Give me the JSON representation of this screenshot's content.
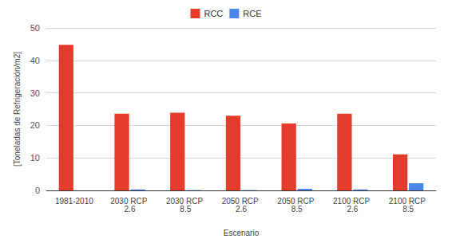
{
  "chart_data": {
    "type": "bar",
    "x_label": "Escenario",
    "y_label": "[Toneladas de Refrigeración/m2]",
    "categories": [
      "1981-2010",
      "2030 RCP 2.6",
      "2030 RCP 8.5",
      "2050 RCP 2.6",
      "2050 RCP 8.5",
      "2100 RCP 2.6",
      "2100 RCP 8.5"
    ],
    "series": [
      {
        "name": "RCC",
        "color": "#e53b2c",
        "values": [
          44.8,
          23.6,
          23.9,
          23.0,
          20.6,
          23.6,
          11.1
        ]
      },
      {
        "name": "RCE",
        "color": "#4a86e8",
        "values": [
          0,
          0.3,
          0.1,
          0.1,
          0.5,
          0.3,
          2.2
        ]
      }
    ],
    "ylim": [
      0,
      50
    ],
    "yticks": [
      0,
      10,
      20,
      30,
      40,
      50
    ],
    "grid": true,
    "legend": "top"
  }
}
